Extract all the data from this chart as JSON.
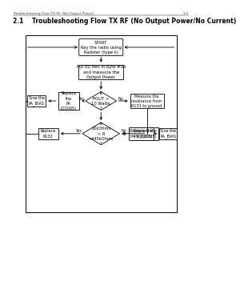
{
  "title_section": "2.1    Troubleshooting Flow TX RF (No Output Power/No Current)",
  "header_text": "Troubleshooting Flow TX RF (No Output Power)",
  "page_num": "3-5",
  "bg_color": "#ffffff",
  "flow": {
    "start_label": "START\nKey the radio using\nRadster (type k)",
    "box1_label": "Put 80 Hex in byte #06\nand measure the\nOutput Power",
    "diamond1_label": "Is\nPOUT >\n10 Watts\n?",
    "box_left1_label": "Replace\nthe\nPA\n(Q1005)",
    "box_left2_label": "Tune the\nPA_BIAS",
    "box_right1_label": "Measure the\nresistance from\nR131 to ground",
    "diamond2_label": "Is\n20kOhms\n< R\n<440kOhms\n?",
    "box_bot_left1_label": "Replace\nR132",
    "box_bot_right1_label": "Replace the\nPA (Q1005)",
    "box_bot_right2_label": "Tune the\nPA_BIAS"
  }
}
